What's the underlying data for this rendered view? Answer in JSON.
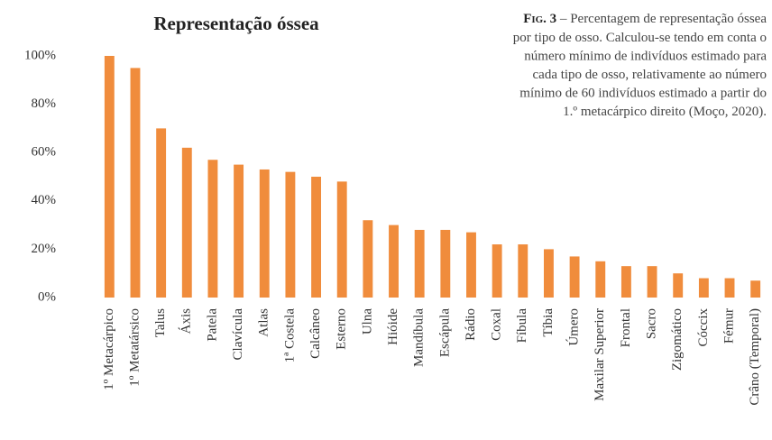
{
  "chart_data": {
    "type": "bar",
    "title": "Representação óssea",
    "categories": [
      "1º Metacárpico",
      "1º Metatársico",
      "Talus",
      "Áxis",
      "Patela",
      "Clavícula",
      "Atlas",
      "1ª Costela",
      "Calcâneo",
      "Esterno",
      "Ulna",
      "Hióide",
      "Mandíbula",
      "Escápula",
      "Rádio",
      "Coxal",
      "Fíbula",
      "Tíbia",
      "Úmero",
      "Maxilar Superior",
      "Frontal",
      "Sacro",
      "Zigomático",
      "Cóccix",
      "Fémur",
      "Crâno (Temporal)"
    ],
    "values": [
      100,
      95,
      70,
      62,
      57,
      55,
      53,
      52,
      50,
      48,
      32,
      30,
      28,
      28,
      27,
      22,
      22,
      20,
      17,
      15,
      13,
      13,
      10,
      8,
      8,
      7
    ],
    "color": "#f08c3c",
    "ylim": [
      0,
      100
    ],
    "yticks": [
      {
        "value": 0,
        "label": "0%"
      },
      {
        "value": 20,
        "label": "20%"
      },
      {
        "value": 40,
        "label": "40%"
      },
      {
        "value": 60,
        "label": "60%"
      },
      {
        "value": 80,
        "label": "80%"
      },
      {
        "value": 100,
        "label": "100%"
      }
    ],
    "grid": false,
    "caption": {
      "label": "Fig. 3",
      "lines": [
        "– Percentagem de representação óssea",
        "por tipo de osso. Calculou-se tendo em conta o",
        "número mínimo de indivíduos estimado para",
        "cada tipo de osso, relativamente ao número",
        "mínimo de 60 indivíduos estimado a partir do",
        "1.º metacárpico direito (Moço, 2020)."
      ]
    }
  }
}
